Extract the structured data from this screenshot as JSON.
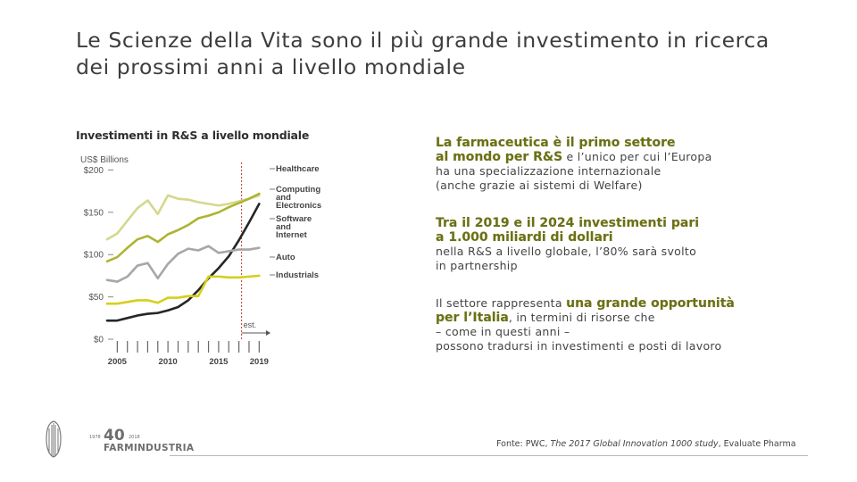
{
  "slide": {
    "title_line1": "Le Scienze della Vita sono il più grande investimento in ricerca",
    "title_line2": "dei prossimi anni a livello mondiale"
  },
  "chart_title": "Investimenti in R&S a livello mondiale",
  "chart_data": {
    "type": "line",
    "ylabel": "US$ Billions",
    "x": [
      2004,
      2005,
      2006,
      2007,
      2008,
      2009,
      2010,
      2011,
      2012,
      2013,
      2014,
      2015,
      2016,
      2017,
      2018,
      2019
    ],
    "x_ticks": [
      2005,
      2010,
      2015,
      2019
    ],
    "y_ticks": [
      "$0",
      "$50",
      "$100",
      "$150",
      "$200"
    ],
    "ylim": [
      0,
      210
    ],
    "xlim": [
      2004,
      2019.5
    ],
    "estimate_from": 2017,
    "estimate_label": "est.",
    "series": [
      {
        "name": "Healthcare",
        "color": "#d4d88c",
        "values": [
          118,
          125,
          140,
          155,
          164,
          148,
          170,
          166,
          165,
          162,
          160,
          158,
          160,
          163,
          166,
          170
        ]
      },
      {
        "name": "Computing and Electronics",
        "color": "#aeb431",
        "values": [
          92,
          97,
          108,
          118,
          122,
          115,
          124,
          129,
          135,
          143,
          146,
          150,
          156,
          161,
          166,
          172
        ]
      },
      {
        "name": "Software and Internet",
        "color": "#262626",
        "values": [
          22,
          22,
          25,
          28,
          30,
          31,
          34,
          38,
          46,
          58,
          72,
          84,
          98,
          117,
          138,
          160
        ]
      },
      {
        "name": "Auto",
        "color": "#a7a7a7",
        "values": [
          70,
          68,
          74,
          87,
          90,
          72,
          89,
          101,
          107,
          105,
          110,
          102,
          104,
          106,
          106,
          108
        ]
      },
      {
        "name": "Industrials",
        "color": "#d6cf1b",
        "values": [
          42,
          42,
          44,
          46,
          46,
          43,
          49,
          49,
          51,
          51,
          74,
          74,
          73,
          73,
          74,
          75
        ]
      }
    ]
  },
  "panel": {
    "b1_hl1": "La farmaceutica è il primo settore",
    "b1_hl2": "al mondo per R&S",
    "b1_t1": "e l’unico per cui l’Europa",
    "b1_t2": "ha una specializzazione internazionale",
    "b1_t3": "(anche grazie ai sistemi di Welfare)",
    "b2_hl1": "Tra il 2019 e il 2024 investimenti pari",
    "b2_hl2": "a 1.000 miliardi di dollari",
    "b2_t1": "nella R&S a livello globale, l’80% sarà svolto",
    "b2_t2": "in partnership",
    "b3_t1": "Il settore rappresenta",
    "b3_hl1": "una grande opportunità",
    "b3_hl2": "per l’Italia",
    "b3_t2": ", in termini di risorse che",
    "b3_t3": "– come in questi anni –",
    "b3_t4": "possono tradursi in investimenti e posti di lavoro"
  },
  "source": {
    "prefix": "Fonte: PWC, ",
    "italic": "The 2017 Global Innovation 1000 study",
    "suffix": ", Evaluate Pharma"
  },
  "logo": {
    "name": "FARMINDUSTRIA",
    "number": "40",
    "year_start": "1978",
    "year_end": "2018"
  }
}
